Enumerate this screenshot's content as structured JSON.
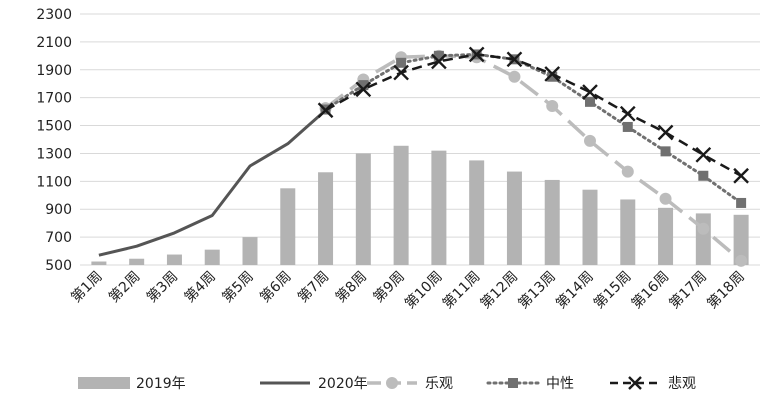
{
  "chart_data": {
    "type": "bar+line",
    "categories": [
      "第1周",
      "第2周",
      "第3周",
      "第4周",
      "第5周",
      "第6周",
      "第7周",
      "第8周",
      "第9周",
      "第10周",
      "第11周",
      "第12周",
      "第13周",
      "第14周",
      "第15周",
      "第16周",
      "第17周",
      "第18周"
    ],
    "ylim": [
      500,
      2300
    ],
    "yticks": [
      500,
      700,
      900,
      1100,
      1300,
      1500,
      1700,
      1900,
      2100,
      2300
    ],
    "grid": true,
    "legend_position": "bottom",
    "series": [
      {
        "name": "2019年",
        "kind": "bar",
        "color": "#b3b3b3",
        "values": [
          525,
          545,
          575,
          610,
          700,
          1050,
          1165,
          1300,
          1355,
          1320,
          1250,
          1170,
          1110,
          1040,
          970,
          910,
          870,
          860
        ]
      },
      {
        "name": "2020年",
        "kind": "line",
        "style": "solid",
        "color": "#555555",
        "values": [
          570,
          635,
          730,
          855,
          1210,
          1370,
          1610,
          null,
          null,
          null,
          null,
          null,
          null,
          null,
          null,
          null,
          null,
          null
        ]
      },
      {
        "name": "乐观",
        "kind": "line",
        "style": "dash-circle",
        "color": "#bcbcbc",
        "values": [
          null,
          null,
          null,
          null,
          null,
          null,
          1625,
          1830,
          1990,
          2000,
          1990,
          1850,
          1640,
          1390,
          1170,
          975,
          760,
          530
        ]
      },
      {
        "name": "中性",
        "kind": "line",
        "style": "dot-square",
        "color": "#707070",
        "values": [
          null,
          null,
          null,
          null,
          null,
          null,
          1615,
          1790,
          1950,
          2000,
          2010,
          1975,
          1850,
          1670,
          1490,
          1315,
          1140,
          945
        ]
      },
      {
        "name": "悲观",
        "kind": "line",
        "style": "dash-x",
        "color": "#1a1a1a",
        "values": [
          null,
          null,
          null,
          null,
          null,
          null,
          1610,
          1760,
          1880,
          1960,
          2010,
          1975,
          1870,
          1740,
          1585,
          1450,
          1290,
          1140
        ]
      }
    ]
  }
}
